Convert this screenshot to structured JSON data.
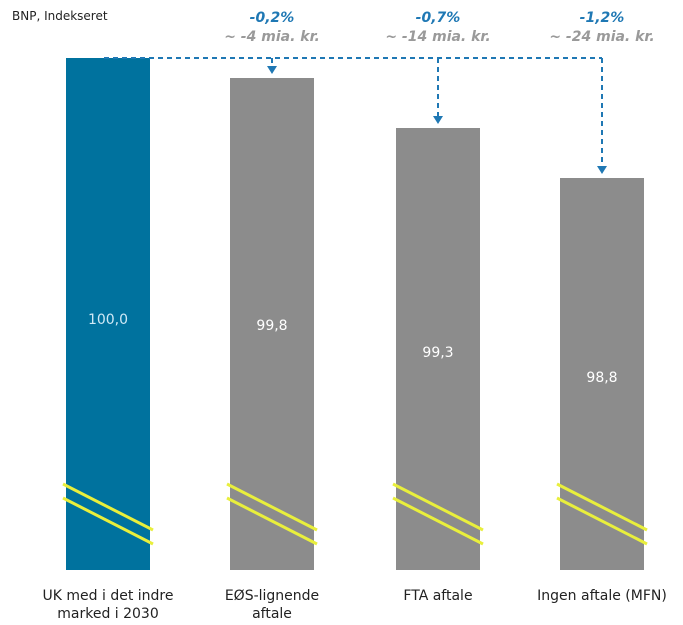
{
  "chart_data": {
    "type": "bar",
    "ylabel": "BNP, Indekseret",
    "categories": [
      [
        "UK med i det indre",
        "marked i 2030"
      ],
      [
        "EØS-lignende",
        "aftale"
      ],
      [
        "FTA aftale"
      ],
      [
        "Ingen aftale (MFN)"
      ]
    ],
    "values": [
      100.0,
      99.8,
      99.3,
      98.8
    ],
    "value_labels": [
      "100,0",
      "99,8",
      "99,3",
      "98,8"
    ],
    "axis_break": true,
    "annotations": [
      {
        "target": 1,
        "pct": "-0,2%",
        "amount": "~ -4 mia. kr."
      },
      {
        "target": 2,
        "pct": "-0,7%",
        "amount": "~ -14 mia. kr."
      },
      {
        "target": 3,
        "pct": "-1,2%",
        "amount": "~ -24 mia. kr."
      }
    ],
    "colors": {
      "baseline_bar": "#00729e",
      "scenario_bar": "#8c8c8c",
      "break_line": "#e9ef3c",
      "arrow": "#1f78b4"
    }
  }
}
